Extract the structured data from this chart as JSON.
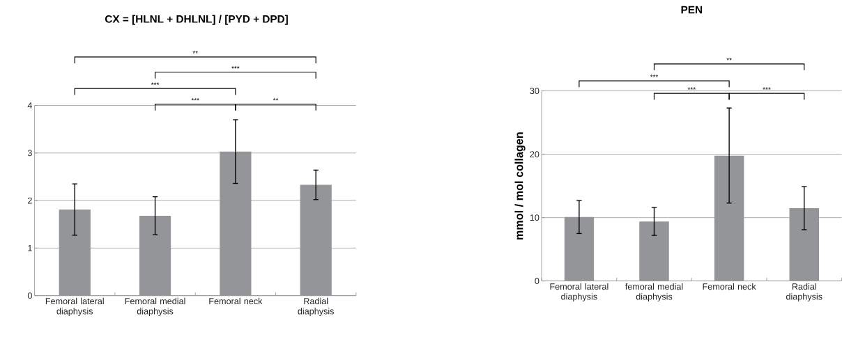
{
  "chart_data": [
    {
      "type": "bar",
      "title": "CX = [HLNL + DHLNL] / [PYD + DPD]",
      "categories": [
        "Femoral lateral diaphysis",
        "Femoral medial diaphysis",
        "Femoral neck",
        "Radial diaphysis"
      ],
      "values": [
        1.81,
        1.68,
        3.03,
        2.33
      ],
      "errors": [
        0.54,
        0.4,
        0.67,
        0.31
      ],
      "color": "#939598",
      "ylim": [
        0,
        4
      ],
      "yticks": [
        0,
        1,
        2,
        3,
        4
      ],
      "grid": "y",
      "annotations": [
        "**",
        "***",
        "***",
        "***",
        "**"
      ]
    },
    {
      "type": "bar",
      "title": "PEN",
      "ylabel": "mmol / mol collagen",
      "categories": [
        "Femoral lateral diaphysis",
        "femoral medial diaphysis",
        "Femoral neck",
        "Radial diaphysis"
      ],
      "values": [
        10.1,
        9.4,
        19.8,
        11.5
      ],
      "errors": [
        2.6,
        2.2,
        7.5,
        3.4
      ],
      "color": "#939598",
      "ylim": [
        0,
        30
      ],
      "yticks": [
        0,
        10,
        20,
        30
      ],
      "grid": "y",
      "annotations": [
        "**",
        "***",
        "***",
        "***"
      ]
    }
  ]
}
